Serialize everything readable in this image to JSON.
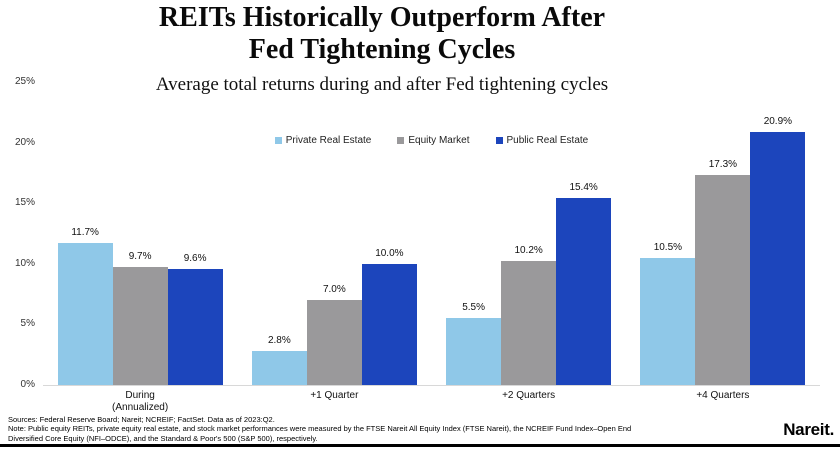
{
  "header": {
    "title": "REITs Historically Outperform After\nFed Tightening Cycles",
    "subtitle": "Average total returns during and after Fed tightening cycles"
  },
  "chart_data": {
    "type": "bar",
    "title": "REITs Historically Outperform After Fed Tightening Cycles",
    "subtitle": "Average total returns during and after Fed tightening cycles",
    "categories": [
      "During\n(Annualized)",
      "+1 Quarter",
      "+2 Quarters",
      "+4 Quarters"
    ],
    "series": [
      {
        "name": "Private Real Estate",
        "color": "#8FC8E8",
        "values": [
          11.7,
          2.8,
          5.5,
          10.5
        ]
      },
      {
        "name": "Equity Market",
        "color": "#9A999B",
        "values": [
          9.7,
          7.0,
          10.2,
          17.3
        ]
      },
      {
        "name": "Public Real Estate",
        "color": "#1C45BC",
        "values": [
          9.6,
          10.0,
          15.4,
          20.9
        ]
      }
    ],
    "value_labels": [
      [
        "11.7%",
        "2.8%",
        "5.5%",
        "10.5%"
      ],
      [
        "9.7%",
        "7.0%",
        "10.2%",
        "17.3%"
      ],
      [
        "9.6%",
        "10.0%",
        "15.4%",
        "20.9%"
      ]
    ],
    "ylim": [
      0,
      25
    ],
    "yticks": [
      "0%",
      "5%",
      "10%",
      "15%",
      "20%",
      "25%"
    ],
    "grid": false,
    "legend_position": "top-center",
    "baseline_color": "#D8D8D8"
  },
  "footer": {
    "line1": "Sources: Federal Reserve Board; Nareit; NCREIF; FactSet. Data as of 2023:Q2.",
    "line2": "Note: Public equity REITs, private equity real estate, and stock market performances were measured by the FTSE Nareit All Equity Index (FTSE Nareit), the NCREIF Fund Index–Open End",
    "line3": "Diversified Core Equity (NFI–ODCE), and the Standard & Poor's 500 (S&P 500), respectively.",
    "logo_text": "Nareit."
  }
}
